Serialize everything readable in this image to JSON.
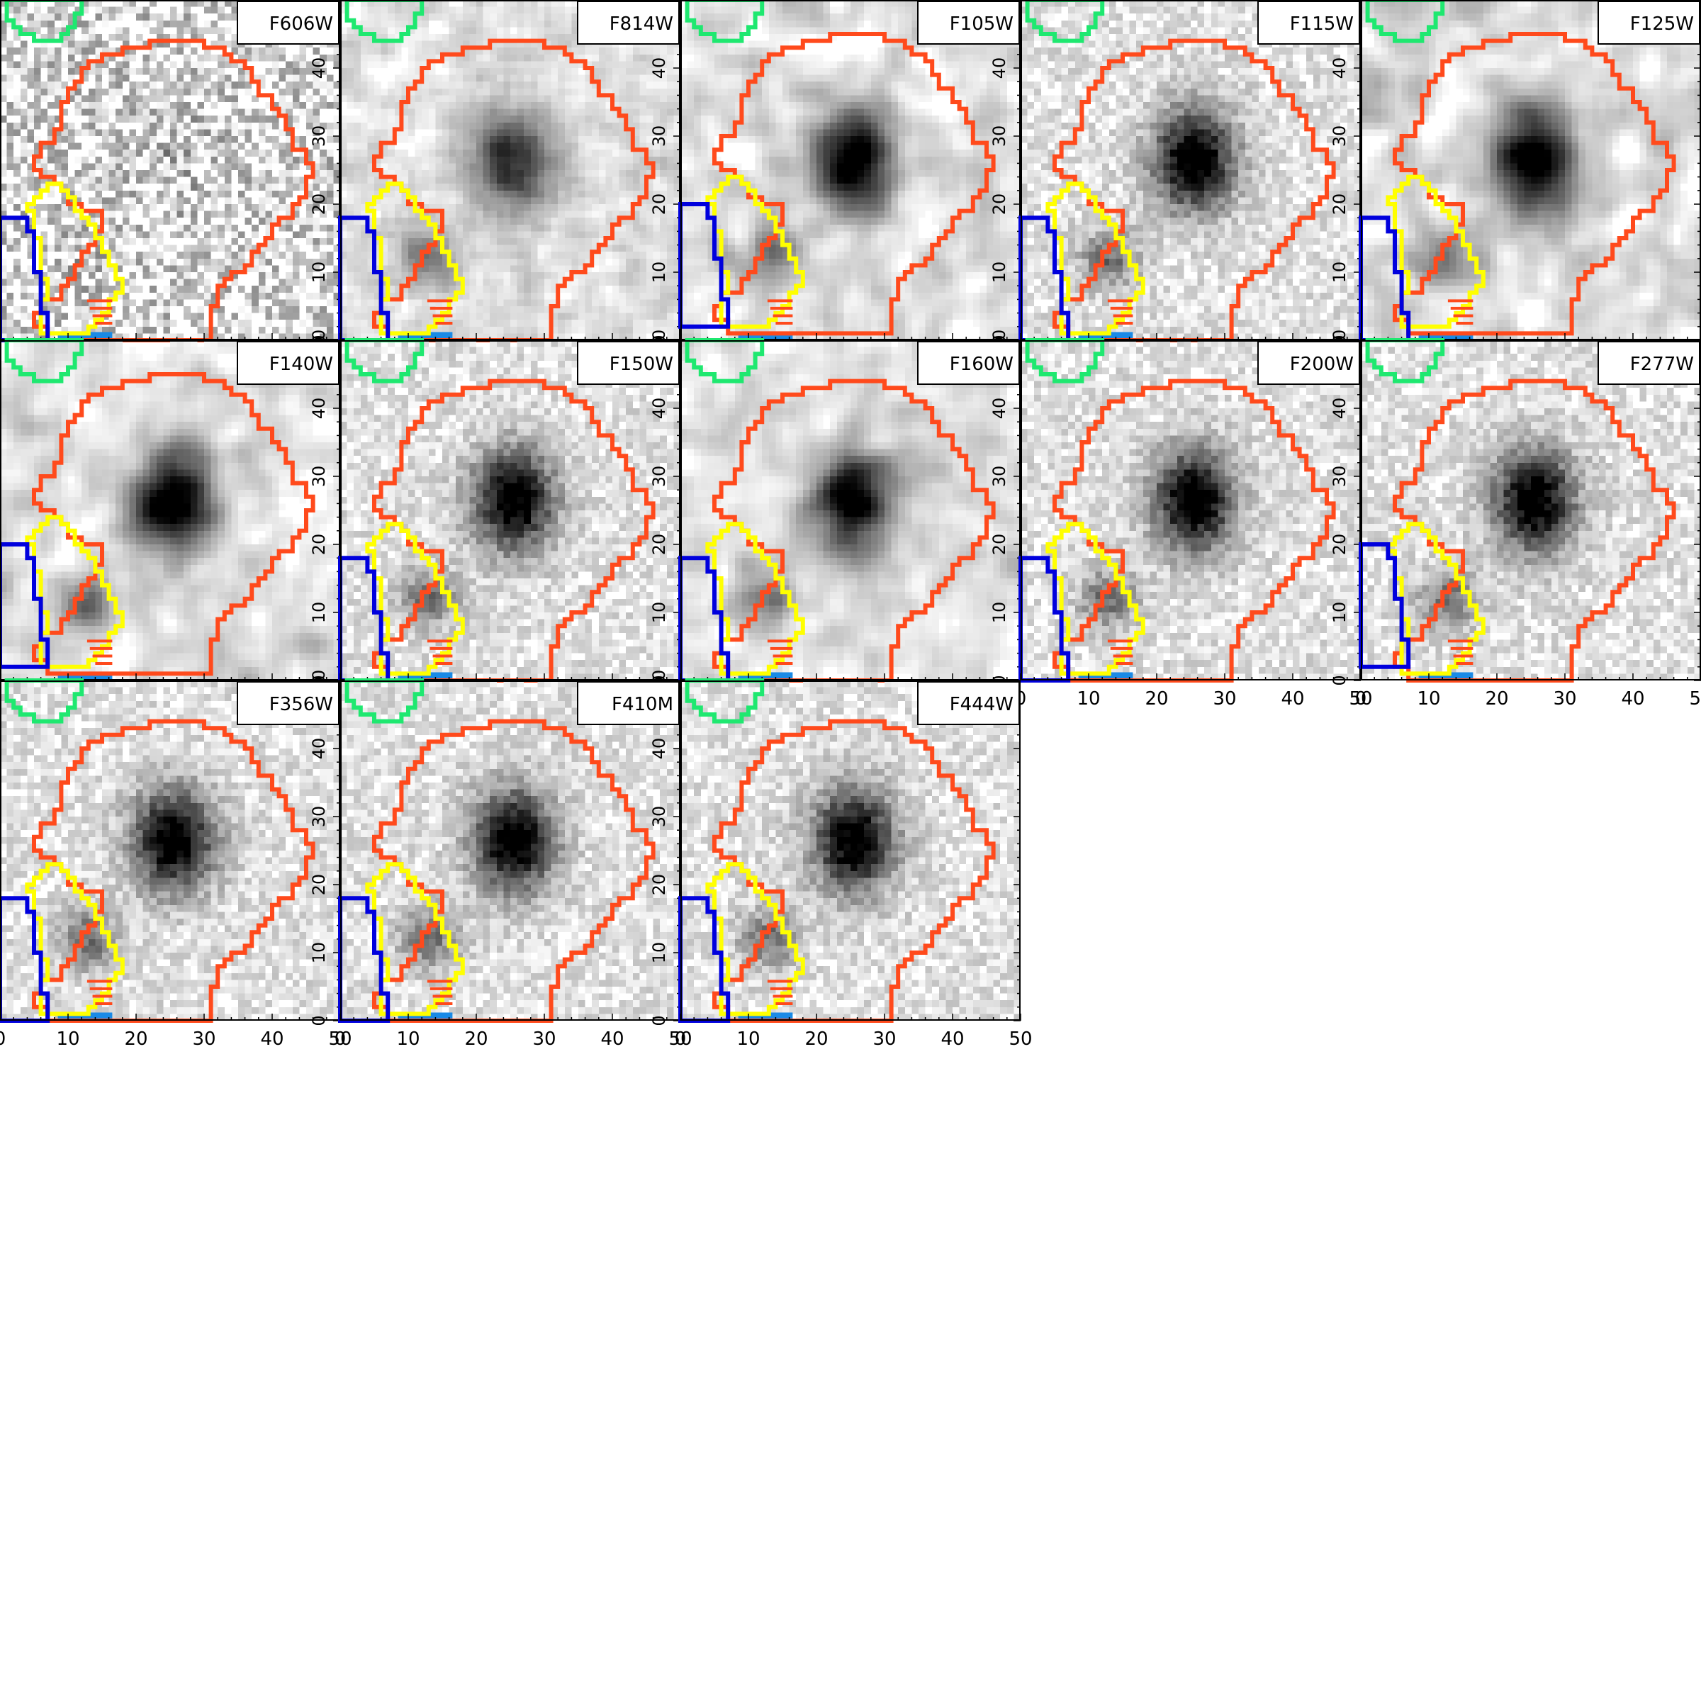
{
  "figure": {
    "axis_ticks": [
      "0",
      "10",
      "20",
      "30",
      "40",
      "50"
    ],
    "colors": {
      "outer_region": "#ff4a1c",
      "inner_region": "#ffff00",
      "left_region": "#0000dd",
      "top_region": "#1fe870",
      "base_patch": "#1a8ae6",
      "frame": "#000000"
    },
    "panels": [
      {
        "filter": "F606W",
        "style": "noisy"
      },
      {
        "filter": "F814W",
        "style": "medium"
      },
      {
        "filter": "F105W",
        "style": "smooth"
      },
      {
        "filter": "F115W",
        "style": "fine"
      },
      {
        "filter": "F125W",
        "style": "smooth"
      },
      {
        "filter": "F140W",
        "style": "smooth"
      },
      {
        "filter": "F150W",
        "style": "fine"
      },
      {
        "filter": "F160W",
        "style": "smooth"
      },
      {
        "filter": "F200W",
        "style": "fine"
      },
      {
        "filter": "F277W",
        "style": "fine"
      },
      {
        "filter": "F356W",
        "style": "fine"
      },
      {
        "filter": "F410M",
        "style": "fine"
      },
      {
        "filter": "F444W",
        "style": "fine"
      }
    ]
  }
}
